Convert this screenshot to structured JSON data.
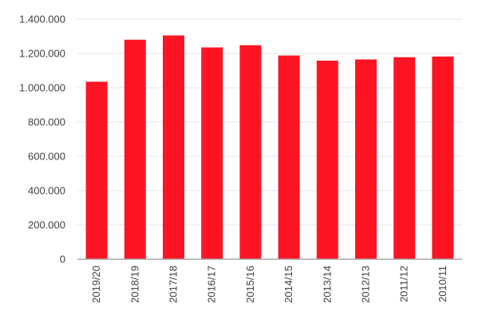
{
  "chart_data": {
    "type": "bar",
    "title": "",
    "xlabel": "",
    "ylabel": "",
    "categories": [
      "2019/20",
      "2018/19",
      "2017/18",
      "2016/17",
      "2015/16",
      "2014/15",
      "2013/14",
      "2012/13",
      "2011/12",
      "2010/11"
    ],
    "values": [
      1035000,
      1280000,
      1305000,
      1235000,
      1248000,
      1188000,
      1158000,
      1165000,
      1178000,
      1182000
    ],
    "ylim": [
      0,
      1400000
    ],
    "yticks": [
      0,
      200000,
      400000,
      600000,
      800000,
      1000000,
      1200000,
      1400000
    ],
    "ytick_labels": [
      "0",
      "200.000",
      "400.000",
      "600.000",
      "800.000",
      "1.000.000",
      "1.200.000",
      "1.400.000"
    ],
    "grid": true,
    "legend": "none",
    "category_label_rotation": "vertical",
    "colors": {
      "bar": "#FF1424",
      "grid": "#E6E6E6",
      "axis": "#A6A6A6",
      "text": "#404040"
    }
  }
}
